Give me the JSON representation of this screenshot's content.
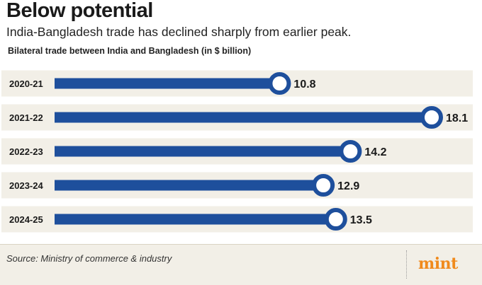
{
  "header": {
    "title": "Below potential",
    "subtitle": "India-Bangladesh trade has declined sharply from earlier peak.",
    "note": "Bilateral trade between India and Bangladesh (in $ billion)"
  },
  "footer": {
    "source": "Source: Ministry of commerce & industry",
    "logo": "mint"
  },
  "colors": {
    "bar": "#1e4f9c",
    "row_band": "#f2efe7",
    "marker_fill": "#ffffff"
  },
  "chart_data": {
    "type": "bar",
    "orientation": "horizontal",
    "title": "Below potential",
    "subtitle": "India-Bangladesh trade has declined sharply from earlier peak.",
    "xlabel": "",
    "ylabel": "Bilateral trade between India and Bangladesh (in $ billion)",
    "categories": [
      "2020-21",
      "2021-22",
      "2022-23",
      "2023-24",
      "2024-25"
    ],
    "values": [
      10.8,
      18.1,
      14.2,
      12.9,
      13.5
    ],
    "labels": [
      "10.8",
      "18.1",
      "14.2",
      "12.9",
      "13.5"
    ],
    "xlim": [
      0,
      18.1
    ],
    "grid": false,
    "legend": "none"
  }
}
